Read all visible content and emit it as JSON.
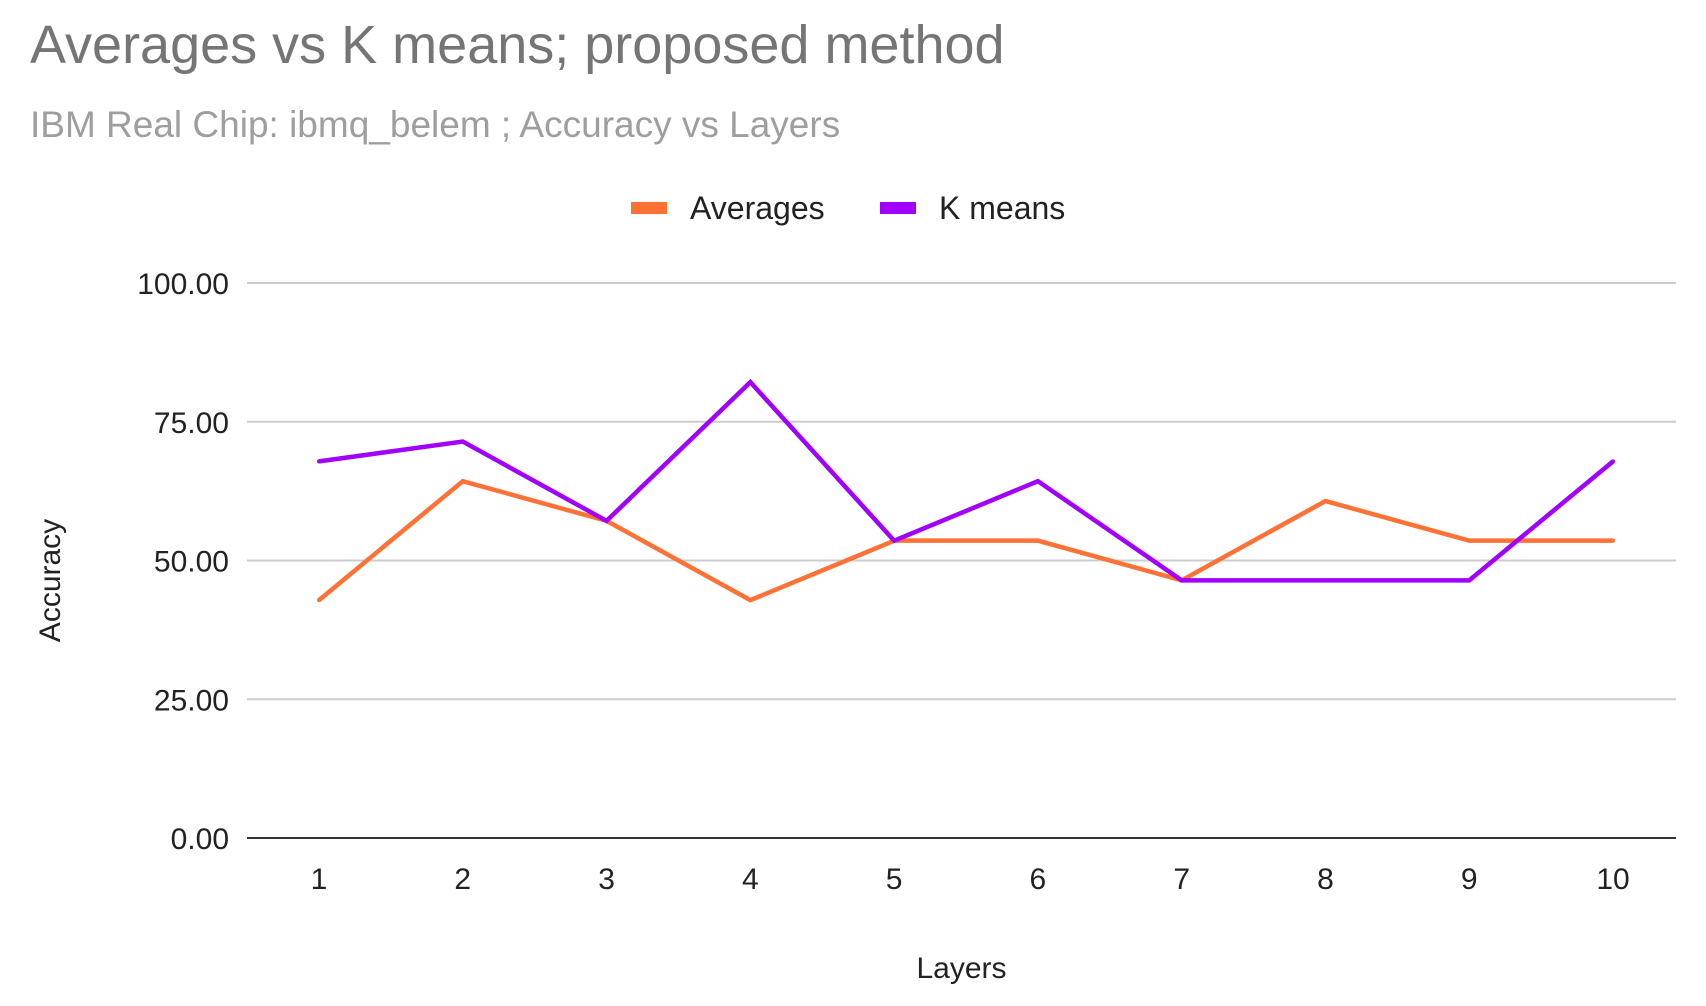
{
  "chart_data": {
    "type": "line",
    "title": "Averages vs K means; proposed method",
    "subtitle": "IBM Real Chip: ibmq_belem ; Accuracy vs Layers",
    "xlabel": "Layers",
    "ylabel": "Accuracy",
    "categories": [
      "1",
      "2",
      "3",
      "4",
      "5",
      "6",
      "7",
      "8",
      "9",
      "10"
    ],
    "ylim": [
      0,
      100
    ],
    "yticks": [
      "0.00",
      "25.00",
      "50.00",
      "75.00",
      "100.00"
    ],
    "grid": true,
    "legend_position": "top",
    "series": [
      {
        "name": "Averages",
        "color": "#FF7134",
        "values": [
          42.86,
          64.29,
          57.14,
          42.86,
          53.57,
          53.57,
          46.43,
          60.71,
          53.57,
          53.57
        ]
      },
      {
        "name": "K means",
        "color": "#A100FF",
        "values": [
          67.86,
          71.43,
          57.14,
          82.14,
          53.57,
          64.29,
          46.43,
          46.43,
          46.43,
          67.86
        ]
      }
    ]
  }
}
